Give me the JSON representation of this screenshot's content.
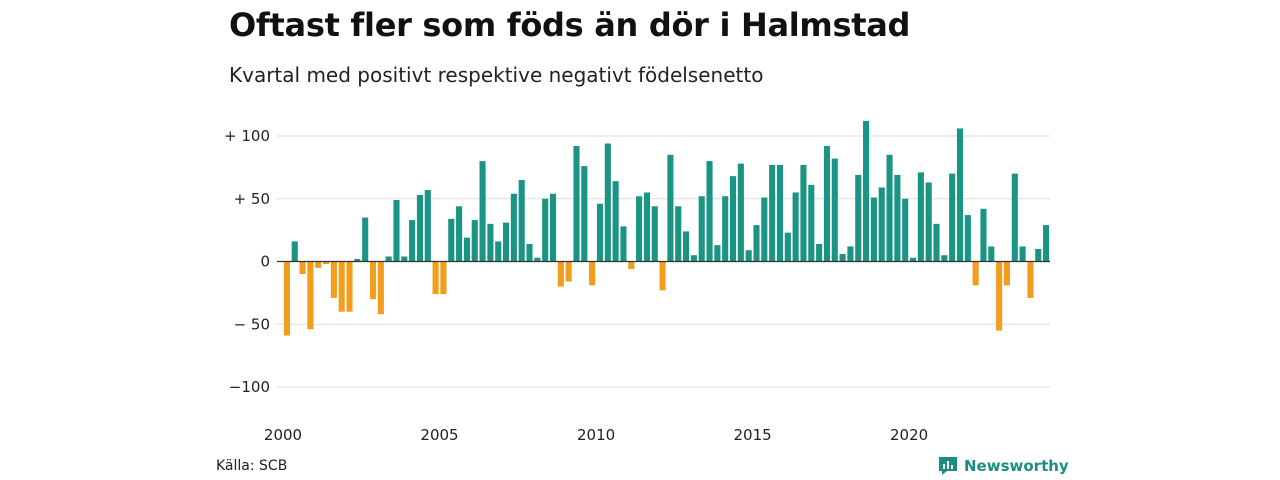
{
  "title": "Oftast fler som föds än dör i Halmstad",
  "subtitle": "Kvartal med positivt respektive negativt födelsenetto",
  "source": "Källa: SCB",
  "brand": "Newsworthy",
  "colors": {
    "positive": "#1a9584",
    "negative": "#f29d1c",
    "grid": "#dddddd",
    "brand": "#1a8f7f"
  },
  "chart_data": {
    "type": "bar",
    "ylim": [
      -110,
      115
    ],
    "grid": true,
    "y_ticks": [
      {
        "value": 100,
        "label": "+ 100"
      },
      {
        "value": 50,
        "label": "+  50"
      },
      {
        "value": 0,
        "label": "0"
      },
      {
        "value": -50,
        "label": "− 50"
      },
      {
        "value": -100,
        "label": "−100"
      }
    ],
    "x_ticks": [
      {
        "year": 2000,
        "label": "2000"
      },
      {
        "year": 2005,
        "label": "2005"
      },
      {
        "year": 2010,
        "label": "2010"
      },
      {
        "year": 2015,
        "label": "2015"
      },
      {
        "year": 2020,
        "label": "2020"
      }
    ],
    "start_year": 2000,
    "values": [
      -59,
      16,
      -10,
      -54,
      -5,
      -2,
      -29,
      -40,
      -40,
      2,
      35,
      -30,
      -42,
      4,
      49,
      4,
      33,
      53,
      57,
      -26,
      -26,
      34,
      44,
      19,
      33,
      80,
      30,
      16,
      31,
      54,
      65,
      14,
      3,
      50,
      54,
      -20,
      -16,
      92,
      76,
      -19,
      46,
      94,
      64,
      28,
      -6,
      52,
      55,
      44,
      -23,
      85,
      44,
      24,
      5,
      52,
      80,
      13,
      52,
      68,
      78,
      9,
      29,
      51,
      77,
      77,
      23,
      55,
      77,
      61,
      14,
      92,
      82,
      6,
      12,
      69,
      112,
      51,
      59,
      85,
      69,
      50,
      3,
      71,
      63,
      30,
      5,
      70,
      106,
      37,
      -19,
      42,
      12,
      -55,
      -19,
      70,
      12,
      -29,
      10,
      29
    ]
  }
}
